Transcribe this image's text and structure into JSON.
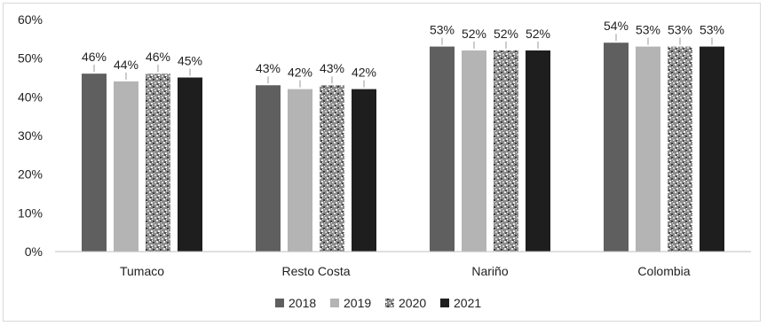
{
  "chart_data": {
    "type": "bar",
    "categories": [
      "Tumaco",
      "Resto Costa",
      "Nariño",
      "Colombia"
    ],
    "series": [
      {
        "name": "2018",
        "values": [
          46,
          43,
          53,
          54
        ],
        "labels": [
          "46%",
          "43%",
          "53%",
          "54%"
        ],
        "color": "#5f5f5f",
        "pattern": "solid"
      },
      {
        "name": "2019",
        "values": [
          44,
          42,
          52,
          53
        ],
        "labels": [
          "44%",
          "42%",
          "52%",
          "53%"
        ],
        "color": "#b4b4b4",
        "pattern": "solid"
      },
      {
        "name": "2020",
        "values": [
          46,
          43,
          52,
          53
        ],
        "labels": [
          "46%",
          "43%",
          "52%",
          "53%"
        ],
        "color": "#9a9a9a",
        "pattern": "speckled"
      },
      {
        "name": "2021",
        "values": [
          45,
          42,
          52,
          53
        ],
        "labels": [
          "45%",
          "42%",
          "52%",
          "53%"
        ],
        "color": "#1e1e1e",
        "pattern": "solid"
      }
    ],
    "ylim": [
      0,
      60
    ],
    "yticks": [
      "0%",
      "10%",
      "20%",
      "30%",
      "40%",
      "50%",
      "60%"
    ],
    "grid": false,
    "legend_position": "bottom"
  }
}
